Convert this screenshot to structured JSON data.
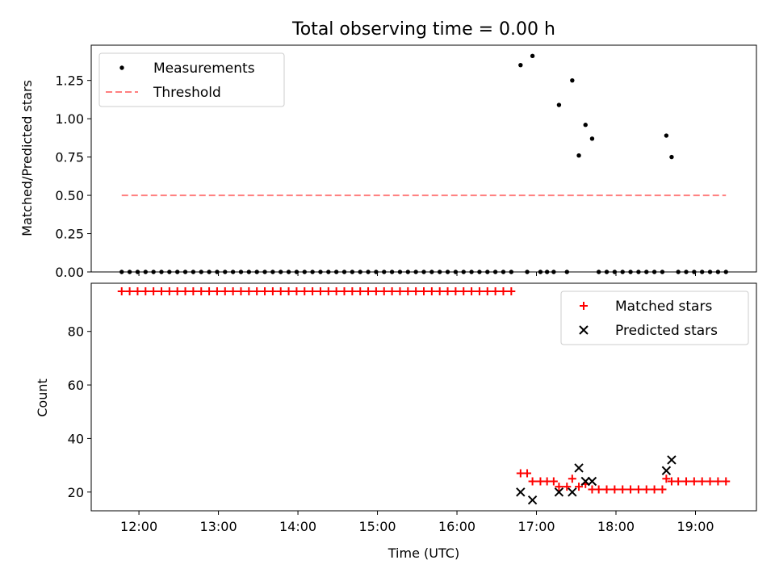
{
  "chart_data": [
    {
      "type": "scatter",
      "title": "Total observing time = 0.00 h",
      "xlabel": "",
      "ylabel": "Matched/Predicted stars",
      "xlim": [
        "11:24",
        "19:46"
      ],
      "ylim": [
        0,
        1.48
      ],
      "yticks": [
        "0.00",
        "0.25",
        "0.50",
        "0.75",
        "1.00",
        "1.25"
      ],
      "legend": {
        "position": "top-left",
        "entries": [
          "Measurements",
          "Threshold"
        ]
      },
      "series": [
        {
          "name": "Measurements",
          "color": "#000000",
          "marker": "dot",
          "points": [
            [
              "11:47",
              0
            ],
            [
              "11:53",
              0
            ],
            [
              "11:59",
              0
            ],
            [
              "12:05",
              0
            ],
            [
              "12:11",
              0
            ],
            [
              "12:17",
              0
            ],
            [
              "12:23",
              0
            ],
            [
              "12:29",
              0
            ],
            [
              "12:35",
              0
            ],
            [
              "12:41",
              0
            ],
            [
              "12:47",
              0
            ],
            [
              "12:53",
              0
            ],
            [
              "12:59",
              0
            ],
            [
              "13:05",
              0
            ],
            [
              "13:11",
              0
            ],
            [
              "13:17",
              0
            ],
            [
              "13:23",
              0
            ],
            [
              "13:29",
              0
            ],
            [
              "13:35",
              0
            ],
            [
              "13:41",
              0
            ],
            [
              "13:47",
              0
            ],
            [
              "13:53",
              0
            ],
            [
              "13:59",
              0
            ],
            [
              "14:05",
              0
            ],
            [
              "14:11",
              0
            ],
            [
              "14:17",
              0
            ],
            [
              "14:23",
              0
            ],
            [
              "14:29",
              0
            ],
            [
              "14:35",
              0
            ],
            [
              "14:41",
              0
            ],
            [
              "14:47",
              0
            ],
            [
              "14:53",
              0
            ],
            [
              "14:59",
              0
            ],
            [
              "15:05",
              0
            ],
            [
              "15:11",
              0
            ],
            [
              "15:17",
              0
            ],
            [
              "15:23",
              0
            ],
            [
              "15:29",
              0
            ],
            [
              "15:35",
              0
            ],
            [
              "15:41",
              0
            ],
            [
              "15:47",
              0
            ],
            [
              "15:53",
              0
            ],
            [
              "15:59",
              0
            ],
            [
              "16:05",
              0
            ],
            [
              "16:11",
              0
            ],
            [
              "16:17",
              0
            ],
            [
              "16:23",
              0
            ],
            [
              "16:29",
              0
            ],
            [
              "16:35",
              0
            ],
            [
              "16:41",
              0
            ],
            [
              "16:48",
              1.35
            ],
            [
              "16:53",
              0
            ],
            [
              "16:57",
              1.41
            ],
            [
              "17:03",
              0
            ],
            [
              "17:08",
              0
            ],
            [
              "17:13",
              0
            ],
            [
              "17:17",
              1.09
            ],
            [
              "17:23",
              0
            ],
            [
              "17:27",
              1.25
            ],
            [
              "17:32",
              0.76
            ],
            [
              "17:37",
              0.96
            ],
            [
              "17:42",
              0.87
            ],
            [
              "17:47",
              0
            ],
            [
              "17:53",
              0
            ],
            [
              "17:59",
              0
            ],
            [
              "18:05",
              0
            ],
            [
              "18:11",
              0
            ],
            [
              "18:17",
              0
            ],
            [
              "18:23",
              0
            ],
            [
              "18:29",
              0
            ],
            [
              "18:35",
              0
            ],
            [
              "18:38",
              0.89
            ],
            [
              "18:42",
              0.75
            ],
            [
              "18:47",
              0
            ],
            [
              "18:53",
              0
            ],
            [
              "18:59",
              0
            ],
            [
              "19:05",
              0
            ],
            [
              "19:11",
              0
            ],
            [
              "19:17",
              0
            ],
            [
              "19:23",
              0
            ]
          ]
        },
        {
          "name": "Threshold",
          "color": "#ff7f7f",
          "style": "dashed",
          "points": [
            [
              "11:47",
              0.5
            ],
            [
              "19:23",
              0.5
            ]
          ]
        }
      ]
    },
    {
      "type": "scatter",
      "title": "",
      "xlabel": "Time (UTC)",
      "ylabel": "Count",
      "xlim": [
        "11:24",
        "19:46"
      ],
      "ylim": [
        13,
        98
      ],
      "xticks": [
        "12:00",
        "13:00",
        "14:00",
        "15:00",
        "16:00",
        "17:00",
        "18:00",
        "19:00"
      ],
      "yticks": [
        "20",
        "40",
        "60",
        "80"
      ],
      "legend": {
        "position": "top-right",
        "entries": [
          "Matched stars",
          "Predicted stars"
        ]
      },
      "series": [
        {
          "name": "Matched stars",
          "color": "#ff0000",
          "marker": "plus",
          "points": [
            [
              "11:47",
              95
            ],
            [
              "11:53",
              95
            ],
            [
              "11:59",
              95
            ],
            [
              "12:05",
              95
            ],
            [
              "12:11",
              95
            ],
            [
              "12:17",
              95
            ],
            [
              "12:23",
              95
            ],
            [
              "12:29",
              95
            ],
            [
              "12:35",
              95
            ],
            [
              "12:41",
              95
            ],
            [
              "12:47",
              95
            ],
            [
              "12:53",
              95
            ],
            [
              "12:59",
              95
            ],
            [
              "13:05",
              95
            ],
            [
              "13:11",
              95
            ],
            [
              "13:17",
              95
            ],
            [
              "13:23",
              95
            ],
            [
              "13:29",
              95
            ],
            [
              "13:35",
              95
            ],
            [
              "13:41",
              95
            ],
            [
              "13:47",
              95
            ],
            [
              "13:53",
              95
            ],
            [
              "13:59",
              95
            ],
            [
              "14:05",
              95
            ],
            [
              "14:11",
              95
            ],
            [
              "14:17",
              95
            ],
            [
              "14:23",
              95
            ],
            [
              "14:29",
              95
            ],
            [
              "14:35",
              95
            ],
            [
              "14:41",
              95
            ],
            [
              "14:47",
              95
            ],
            [
              "14:53",
              95
            ],
            [
              "14:59",
              95
            ],
            [
              "15:05",
              95
            ],
            [
              "15:11",
              95
            ],
            [
              "15:17",
              95
            ],
            [
              "15:23",
              95
            ],
            [
              "15:29",
              95
            ],
            [
              "15:35",
              95
            ],
            [
              "15:41",
              95
            ],
            [
              "15:47",
              95
            ],
            [
              "15:53",
              95
            ],
            [
              "15:59",
              95
            ],
            [
              "16:05",
              95
            ],
            [
              "16:11",
              95
            ],
            [
              "16:17",
              95
            ],
            [
              "16:23",
              95
            ],
            [
              "16:29",
              95
            ],
            [
              "16:35",
              95
            ],
            [
              "16:41",
              95
            ],
            [
              "16:48",
              27
            ],
            [
              "16:53",
              27
            ],
            [
              "16:57",
              24
            ],
            [
              "17:03",
              24
            ],
            [
              "17:08",
              24
            ],
            [
              "17:13",
              24
            ],
            [
              "17:17",
              22
            ],
            [
              "17:23",
              22
            ],
            [
              "17:27",
              25
            ],
            [
              "17:32",
              22
            ],
            [
              "17:37",
              23
            ],
            [
              "17:42",
              21
            ],
            [
              "17:47",
              21
            ],
            [
              "17:53",
              21
            ],
            [
              "17:59",
              21
            ],
            [
              "18:05",
              21
            ],
            [
              "18:11",
              21
            ],
            [
              "18:17",
              21
            ],
            [
              "18:23",
              21
            ],
            [
              "18:29",
              21
            ],
            [
              "18:35",
              21
            ],
            [
              "18:38",
              25
            ],
            [
              "18:42",
              24
            ],
            [
              "18:47",
              24
            ],
            [
              "18:53",
              24
            ],
            [
              "18:59",
              24
            ],
            [
              "19:05",
              24
            ],
            [
              "19:11",
              24
            ],
            [
              "19:17",
              24
            ],
            [
              "19:23",
              24
            ]
          ]
        },
        {
          "name": "Predicted stars",
          "color": "#000000",
          "marker": "x",
          "points": [
            [
              "16:48",
              20
            ],
            [
              "16:57",
              17
            ],
            [
              "17:17",
              20
            ],
            [
              "17:27",
              20
            ],
            [
              "17:32",
              29
            ],
            [
              "17:37",
              24
            ],
            [
              "17:42",
              24
            ],
            [
              "18:38",
              28
            ],
            [
              "18:42",
              32
            ]
          ]
        }
      ]
    }
  ]
}
